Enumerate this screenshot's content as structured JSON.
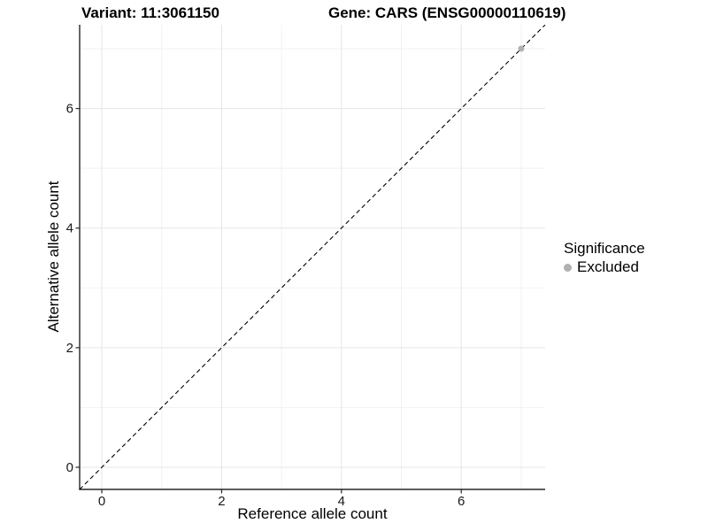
{
  "chart_data": {
    "type": "scatter",
    "titles": {
      "left": "Variant: 11:3061150",
      "right": "Gene: CARS (ENSG00000110619)"
    },
    "xlabel": "Reference allele count",
    "ylabel": "Alternative allele count",
    "xlim": [
      -0.37,
      7.4
    ],
    "ylim": [
      -0.37,
      7.4
    ],
    "xticks": [
      0,
      2,
      4,
      6
    ],
    "yticks": [
      0,
      2,
      4,
      6
    ],
    "xticks_minor": [
      1,
      3,
      5,
      7
    ],
    "yticks_minor": [
      1,
      3,
      5,
      7
    ],
    "grid": true,
    "reference_line": {
      "type": "identity",
      "style": "dashed",
      "color": "#000000"
    },
    "series": [
      {
        "name": "Excluded",
        "color": "#b0b0b0",
        "points": [
          {
            "x": 7,
            "y": 7
          }
        ]
      }
    ],
    "legend": {
      "title": "Significance",
      "position": "right",
      "items": [
        {
          "label": "Excluded",
          "color": "#b0b0b0"
        }
      ]
    },
    "colors": {
      "grid_major": "#e5e5e5",
      "grid_minor": "#f2f2f2",
      "axis_line": "#262626",
      "tick_text": "#1a1a1a",
      "panel_background": "#ffffff"
    }
  }
}
